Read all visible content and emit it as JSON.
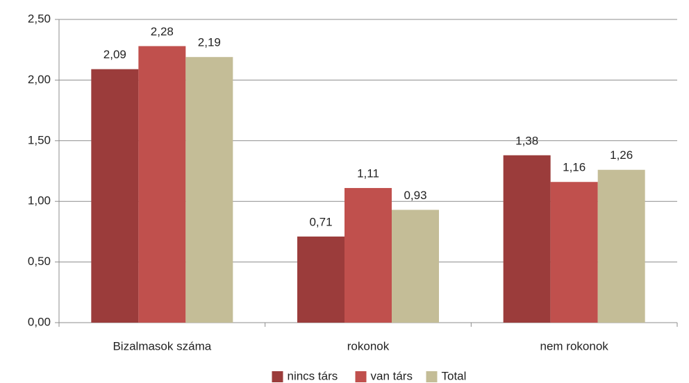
{
  "chart_data": {
    "type": "bar",
    "categories": [
      "Bizalmasok száma",
      "rokonok",
      "nem rokonok"
    ],
    "series": [
      {
        "name": "nincs társ",
        "color": "#9b3c3b",
        "values": [
          2.09,
          0.71,
          1.38
        ],
        "value_labels": [
          "2,09",
          "0,71",
          "1,38"
        ]
      },
      {
        "name": "van társ",
        "color": "#c0504d",
        "values": [
          2.28,
          1.11,
          1.16
        ],
        "value_labels": [
          "2,28",
          "1,11",
          "1,16"
        ]
      },
      {
        "name": "Total",
        "color": "#c4bd97",
        "values": [
          2.19,
          0.93,
          1.26
        ],
        "value_labels": [
          "2,19",
          "0,93",
          "1,26"
        ]
      }
    ],
    "ylim": [
      0,
      2.5
    ],
    "yticks": [
      {
        "value": 0,
        "label": "0,00"
      },
      {
        "value": 0.5,
        "label": "0,50"
      },
      {
        "value": 1,
        "label": "1,00"
      },
      {
        "value": 1.5,
        "label": "1,50"
      },
      {
        "value": 2,
        "label": "2,00"
      },
      {
        "value": 2.5,
        "label": "2,50"
      }
    ],
    "grid": true,
    "legend": "bottom"
  }
}
